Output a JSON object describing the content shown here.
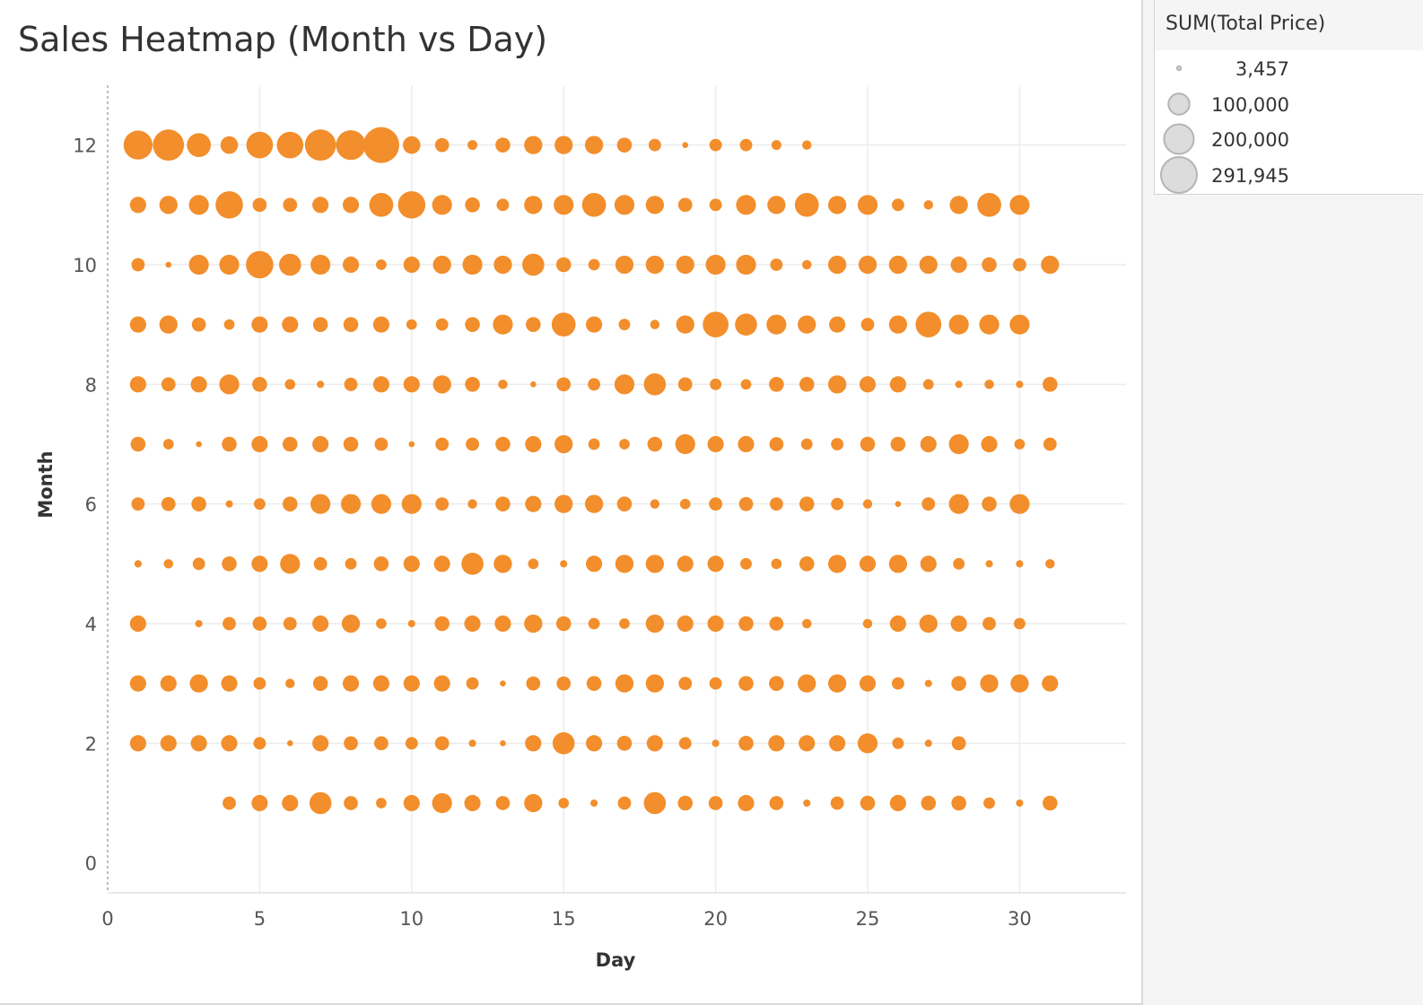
{
  "chart_data": {
    "type": "scatter",
    "title": "Sales Heatmap (Month vs Day)",
    "xlabel": "Day",
    "ylabel": "Month",
    "xlim": [
      0,
      33.5
    ],
    "ylim": [
      -0.5,
      13.0
    ],
    "xticks": [
      0,
      5,
      10,
      15,
      20,
      25,
      30
    ],
    "yticks": [
      0,
      2,
      4,
      6,
      8,
      10,
      12
    ],
    "grid": true,
    "mark_color": "#f28e2b",
    "size_encoding": "SUM(Total Price)",
    "size_max": 291945,
    "days": [
      1,
      2,
      3,
      4,
      5,
      6,
      7,
      8,
      9,
      10,
      11,
      12,
      13,
      14,
      15,
      16,
      17,
      18,
      19,
      20,
      21,
      22,
      23,
      24,
      25,
      26,
      27,
      28,
      29,
      30,
      31
    ],
    "series": [
      {
        "month": 12,
        "values": [
          190000,
          220000,
          130000,
          70000,
          160000,
          160000,
          220000,
          200000,
          291945,
          70000,
          45000,
          22000,
          50000,
          75000,
          75000,
          75000,
          50000,
          35000,
          8000,
          35000,
          35000,
          22000,
          20000,
          null,
          null,
          null,
          null,
          null,
          null,
          null,
          null
        ]
      },
      {
        "month": 11,
        "values": [
          60000,
          75000,
          90000,
          170000,
          45000,
          45000,
          60000,
          60000,
          130000,
          170000,
          90000,
          50000,
          35000,
          75000,
          90000,
          130000,
          90000,
          75000,
          45000,
          35000,
          90000,
          75000,
          130000,
          75000,
          90000,
          35000,
          20000,
          75000,
          130000,
          90000,
          null
        ]
      },
      {
        "month": 10,
        "values": [
          40000,
          8000,
          90000,
          90000,
          170000,
          110000,
          90000,
          60000,
          25000,
          60000,
          75000,
          90000,
          75000,
          110000,
          50000,
          30000,
          75000,
          75000,
          75000,
          90000,
          90000,
          35000,
          20000,
          75000,
          75000,
          75000,
          75000,
          60000,
          50000,
          40000,
          75000
        ]
      },
      {
        "month": 9,
        "values": [
          60000,
          75000,
          45000,
          25000,
          60000,
          60000,
          50000,
          50000,
          60000,
          25000,
          35000,
          50000,
          90000,
          50000,
          130000,
          60000,
          30000,
          20000,
          75000,
          150000,
          110000,
          90000,
          75000,
          60000,
          40000,
          75000,
          150000,
          90000,
          90000,
          90000,
          null
        ]
      },
      {
        "month": 8,
        "values": [
          60000,
          45000,
          60000,
          90000,
          50000,
          25000,
          12000,
          40000,
          60000,
          60000,
          75000,
          50000,
          20000,
          8000,
          45000,
          35000,
          90000,
          110000,
          45000,
          30000,
          25000,
          50000,
          50000,
          75000,
          60000,
          60000,
          25000,
          12000,
          20000,
          12000,
          50000
        ]
      },
      {
        "month": 7,
        "values": [
          50000,
          25000,
          8000,
          50000,
          60000,
          50000,
          60000,
          50000,
          40000,
          8000,
          40000,
          40000,
          50000,
          60000,
          75000,
          30000,
          25000,
          50000,
          90000,
          60000,
          60000,
          45000,
          30000,
          35000,
          50000,
          50000,
          60000,
          90000,
          60000,
          25000,
          40000
        ]
      },
      {
        "month": 6,
        "values": [
          40000,
          45000,
          50000,
          12000,
          30000,
          50000,
          90000,
          90000,
          90000,
          90000,
          40000,
          20000,
          50000,
          60000,
          75000,
          75000,
          50000,
          20000,
          25000,
          40000,
          45000,
          40000,
          50000,
          35000,
          20000,
          8000,
          40000,
          90000,
          50000,
          90000,
          null
        ]
      },
      {
        "month": 5,
        "values": [
          12000,
          20000,
          35000,
          50000,
          60000,
          90000,
          40000,
          30000,
          50000,
          60000,
          60000,
          110000,
          75000,
          25000,
          12000,
          60000,
          75000,
          75000,
          60000,
          60000,
          30000,
          25000,
          50000,
          75000,
          60000,
          75000,
          60000,
          30000,
          12000,
          12000,
          20000
        ]
      },
      {
        "month": 4,
        "values": [
          60000,
          null,
          12000,
          40000,
          45000,
          40000,
          60000,
          75000,
          25000,
          12000,
          50000,
          60000,
          60000,
          75000,
          50000,
          30000,
          25000,
          75000,
          60000,
          60000,
          50000,
          45000,
          20000,
          null,
          20000,
          60000,
          75000,
          60000,
          40000,
          30000,
          null
        ]
      },
      {
        "month": 3,
        "values": [
          60000,
          60000,
          75000,
          60000,
          35000,
          20000,
          50000,
          60000,
          60000,
          60000,
          60000,
          35000,
          8000,
          45000,
          45000,
          50000,
          75000,
          75000,
          40000,
          35000,
          50000,
          50000,
          75000,
          75000,
          60000,
          35000,
          12000,
          50000,
          75000,
          75000,
          60000
        ]
      },
      {
        "month": 2,
        "values": [
          60000,
          60000,
          60000,
          60000,
          35000,
          8000,
          60000,
          45000,
          45000,
          35000,
          45000,
          12000,
          8000,
          60000,
          110000,
          60000,
          50000,
          60000,
          35000,
          12000,
          50000,
          60000,
          60000,
          60000,
          90000,
          30000,
          12000,
          45000,
          null,
          null,
          null
        ]
      },
      {
        "month": 1,
        "values": [
          null,
          null,
          null,
          40000,
          60000,
          60000,
          110000,
          45000,
          25000,
          60000,
          90000,
          60000,
          45000,
          75000,
          25000,
          12000,
          40000,
          110000,
          50000,
          45000,
          60000,
          45000,
          12000,
          40000,
          50000,
          60000,
          50000,
          50000,
          30000,
          12000,
          50000
        ]
      }
    ],
    "legend": {
      "title": "SUM(Total Price)",
      "placement": "top-right",
      "entries": [
        {
          "label": "3,457",
          "value": 3457
        },
        {
          "label": "100,000",
          "value": 100000
        },
        {
          "label": "200,000",
          "value": 200000
        },
        {
          "label": "291,945",
          "value": 291945
        }
      ]
    }
  }
}
